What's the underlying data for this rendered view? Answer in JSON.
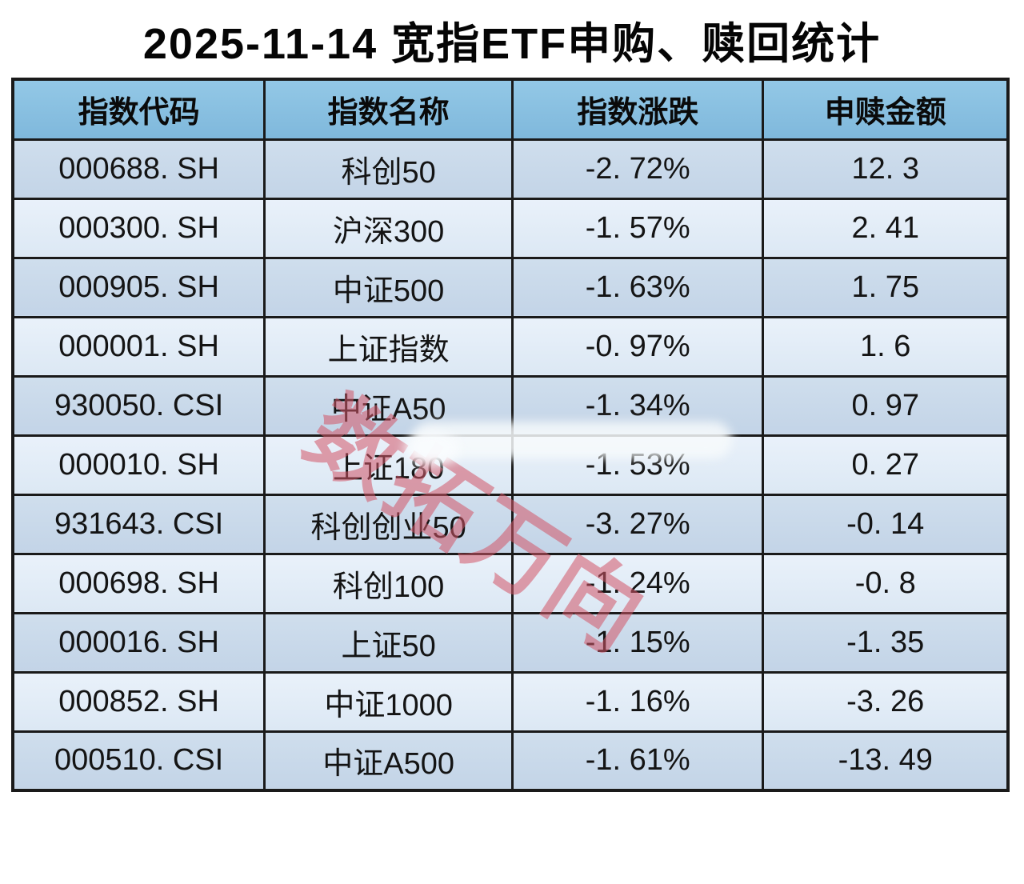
{
  "title": "2025-11-14 宽指ETF申购、赎回统计",
  "watermark": {
    "text": "数拓万向",
    "color_hex": "#d35668"
  },
  "table": {
    "headers": [
      "指数代码",
      "指数名称",
      "指数涨跌",
      "申赎金额"
    ],
    "rows": [
      [
        "000688. SH",
        "科创50",
        "-2. 72%",
        "12. 3"
      ],
      [
        "000300. SH",
        "沪深300",
        "-1. 57%",
        "2. 41"
      ],
      [
        "000905. SH",
        "中证500",
        "-1. 63%",
        "1. 75"
      ],
      [
        "000001. SH",
        "上证指数",
        "-0. 97%",
        "1. 6"
      ],
      [
        "930050. CSI",
        "中证A50",
        "-1. 34%",
        "0. 97"
      ],
      [
        "000010. SH",
        "上证180",
        "-1. 53%",
        "0. 27"
      ],
      [
        "931643. CSI",
        "科创创业50",
        "-3. 27%",
        "-0. 14"
      ],
      [
        "000698. SH",
        "科创100",
        "-1. 24%",
        "-0. 8"
      ],
      [
        "000016. SH",
        "上证50",
        "-1. 15%",
        "-1. 35"
      ],
      [
        "000852. SH",
        "中证1000",
        "-1. 16%",
        "-3. 26"
      ],
      [
        "000510. CSI",
        "中证A500",
        "-1. 61%",
        "-13. 49"
      ]
    ]
  },
  "colors": {
    "header_bg": "#89c0e0",
    "row_dark": "#c9d8e9",
    "row_light": "#e3edf8",
    "border": "#1a1a1a",
    "watermark": "#d35668"
  },
  "chart_data": {
    "type": "table",
    "title": "2025-11-14 宽指ETF申购、赎回统计",
    "columns": [
      "指数代码",
      "指数名称",
      "指数涨跌",
      "申赎金额"
    ],
    "rows": [
      [
        "000688.SH",
        "科创50",
        "-2.72%",
        12.3
      ],
      [
        "000300.SH",
        "沪深300",
        "-1.57%",
        2.41
      ],
      [
        "000905.SH",
        "中证500",
        "-1.63%",
        1.75
      ],
      [
        "000001.SH",
        "上证指数",
        "-0.97%",
        1.6
      ],
      [
        "930050.CSI",
        "中证A50",
        "-1.34%",
        0.97
      ],
      [
        "000010.SH",
        "上证180",
        "-1.53%",
        0.27
      ],
      [
        "931643.CSI",
        "科创创业50",
        "-3.27%",
        -0.14
      ],
      [
        "000698.SH",
        "科创100",
        "-1.24%",
        -0.8
      ],
      [
        "000016.SH",
        "上证50",
        "-1.15%",
        -1.35
      ],
      [
        "000852.SH",
        "中证1000",
        "-1.16%",
        -3.26
      ],
      [
        "000510.CSI",
        "中证A500",
        "-1.61%",
        -13.49
      ]
    ],
    "notes": {
      "change_column_unit": "percent",
      "amount_column_unit": "亿元 (implied)",
      "all_changes_negative": true
    }
  }
}
